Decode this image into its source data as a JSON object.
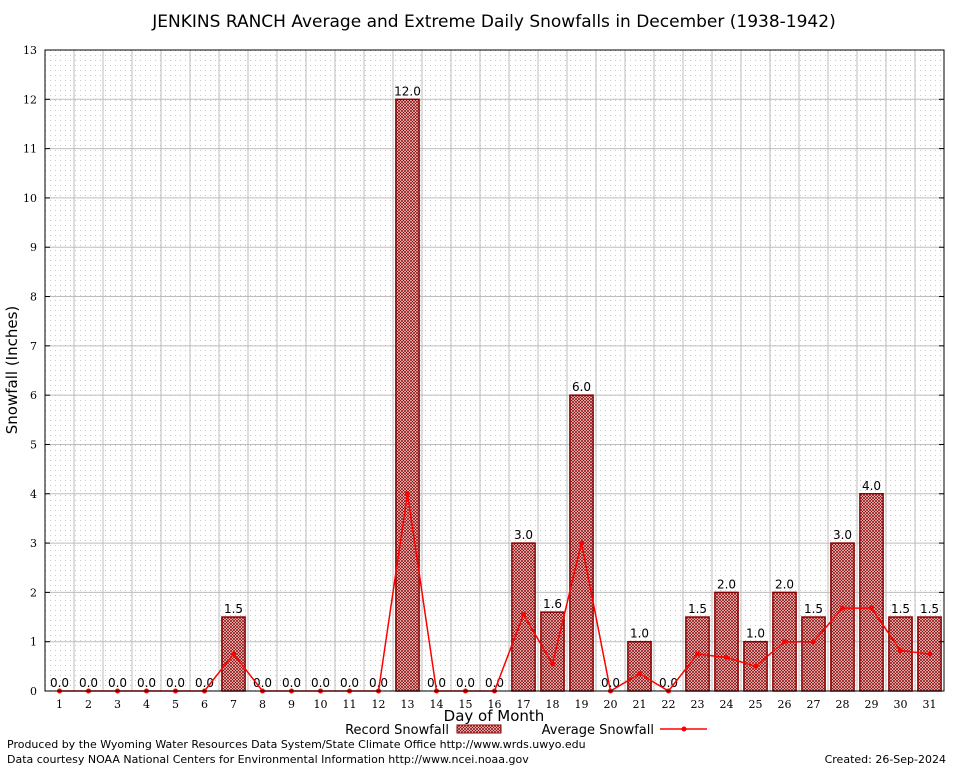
{
  "chart_data": {
    "type": "bar",
    "title": "JENKINS RANCH Average and Extreme Daily Snowfalls in December (1938-1942)",
    "xlabel": "Day of Month",
    "ylabel": "Snowfall (Inches)",
    "ylim": [
      0,
      13
    ],
    "yticks": [
      "0",
      "1",
      "2",
      "3",
      "4",
      "5",
      "6",
      "7",
      "8",
      "9",
      "10",
      "11",
      "12",
      "13"
    ],
    "categories": [
      "1",
      "2",
      "3",
      "4",
      "5",
      "6",
      "7",
      "8",
      "9",
      "10",
      "11",
      "12",
      "13",
      "14",
      "15",
      "16",
      "17",
      "18",
      "19",
      "20",
      "21",
      "22",
      "23",
      "24",
      "25",
      "26",
      "27",
      "28",
      "29",
      "30",
      "31"
    ],
    "grid": true,
    "legend_position": "bottom",
    "series": [
      {
        "name": "Record Snowfall",
        "kind": "bar",
        "color": "#8b0000",
        "values": [
          0,
          0,
          0,
          0,
          0,
          0,
          1.5,
          0,
          0,
          0,
          0,
          0,
          12,
          0,
          0,
          0,
          3,
          1.6,
          6,
          0,
          1,
          0,
          1.5,
          2,
          1,
          2,
          1.5,
          3,
          4,
          1.5,
          1.5
        ],
        "labels": [
          "0.0",
          "0.0",
          "0.0",
          "0.0",
          "0.0",
          "0.0",
          "1.5",
          "0.0",
          "0.0",
          "0.0",
          "0.0",
          "0.0",
          "12.0",
          "0.0",
          "0.0",
          "0.0",
          "3.0",
          "1.6",
          "6.0",
          "0.0",
          "1.0",
          "0.0",
          "1.5",
          "2.0",
          "1.0",
          "2.0",
          "1.5",
          "3.0",
          "4.0",
          "1.5",
          "1.5"
        ]
      },
      {
        "name": "Average Snowfall",
        "kind": "line",
        "color": "#ff0000",
        "values": [
          0,
          0,
          0,
          0,
          0,
          0,
          0.75,
          0,
          0,
          0,
          0,
          0,
          4,
          0,
          0,
          0,
          1.55,
          0.55,
          3,
          0,
          0.35,
          0,
          0.75,
          0.68,
          0.5,
          1,
          1,
          1.68,
          1.68,
          0.82,
          0.75
        ]
      }
    ]
  },
  "footer": {
    "produced_by": "Produced by the Wyoming Water Resources Data System/State Climate Office http://www.wrds.uwyo.edu",
    "courtesy": "Data courtesy NOAA National Centers for Environmental Information http://www.ncei.noaa.gov",
    "created": "Created:  26-Sep-2024"
  }
}
